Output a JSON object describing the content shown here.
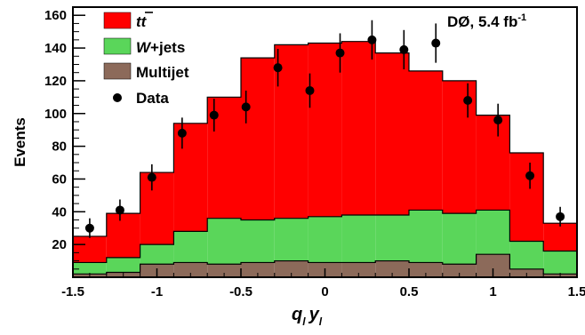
{
  "chart_data": {
    "type": "bar",
    "stacked": true,
    "bin_edges": [
      -1.5,
      -1.3,
      -1.1,
      -0.9,
      -0.7,
      -0.5,
      -0.3,
      -0.1,
      0.1,
      0.3,
      0.5,
      0.7,
      0.9,
      1.1,
      1.3,
      1.5
    ],
    "xlim": [
      -1.5,
      1.5
    ],
    "ylim": [
      0,
      165
    ],
    "x_ticks": [
      -1.5,
      -1,
      -0.5,
      0,
      0.5,
      1,
      1.5
    ],
    "x_tick_labels": [
      "-1.5",
      "-1",
      "-0.5",
      "0",
      "0.5",
      "1",
      "1.5"
    ],
    "y_ticks": [
      20,
      40,
      60,
      80,
      100,
      120,
      140,
      160
    ],
    "y_tick_labels": [
      "20",
      "40",
      "60",
      "80",
      "100",
      "120",
      "140",
      "160"
    ],
    "xlabel_main": "q",
    "xlabel_sub1": "l",
    "xlabel_mid": "y",
    "xlabel_sub2": "l",
    "ylabel": "Events",
    "annotation_prefix": "DØ, 5.4 fb",
    "annotation_sup": "-1",
    "legend_position": "top-left",
    "series": [
      {
        "name": "Multijet",
        "kind": "stack",
        "color": "#8c6a5a",
        "values": [
          2,
          3,
          8,
          9,
          8,
          9,
          10,
          9,
          9,
          10,
          9,
          8,
          14,
          5,
          2
        ]
      },
      {
        "name": "W+jets",
        "kind": "stack",
        "color": "#5ad65a",
        "values": [
          7,
          9,
          12,
          19,
          28,
          26,
          26,
          28,
          29,
          28,
          32,
          31,
          27,
          17,
          14
        ]
      },
      {
        "name": "tt̄",
        "kind": "stack",
        "color": "#ff0000",
        "values": [
          16,
          27,
          44,
          66,
          74,
          99,
          106,
          106,
          106,
          99,
          85,
          81,
          58,
          54,
          17
        ]
      },
      {
        "name": "Data",
        "kind": "points",
        "color": "#000000",
        "values": [
          30,
          41,
          61,
          88,
          99,
          104,
          128,
          114,
          137,
          145,
          139,
          143,
          108,
          96,
          62,
          37
        ],
        "x": [
          -1.4,
          -1.22,
          -1.03,
          -0.85,
          -0.66,
          -0.47,
          -0.28,
          -0.09,
          0.09,
          0.28,
          0.47,
          0.66,
          0.85,
          1.03,
          1.22,
          1.4
        ],
        "errors": [
          6,
          6.5,
          8,
          9.5,
          10,
          10,
          11.5,
          10.5,
          12,
          12,
          12,
          12,
          10.5,
          10,
          8,
          6
        ]
      }
    ],
    "legend": [
      {
        "label_main": "t",
        "label_bar": "t",
        "swatch": "box",
        "color": "#ff0000"
      },
      {
        "label_main": "W",
        "label_rest": "+jets",
        "swatch": "box",
        "color": "#5ad65a"
      },
      {
        "label_main": "Multijet",
        "label_rest": "",
        "swatch": "box",
        "color": "#8c6a5a"
      },
      {
        "label_main": "Data",
        "label_rest": "",
        "swatch": "dot",
        "color": "#000000"
      }
    ]
  }
}
